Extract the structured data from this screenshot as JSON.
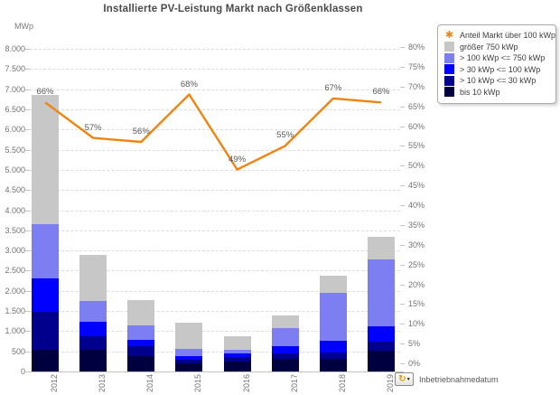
{
  "title": "Installierte PV-Leistung Markt nach Größenklassen",
  "left_axis_unit": "MWp",
  "chart_data": {
    "type": "bar",
    "subtype": "stacked-bars-with-percentage-line",
    "title": "Installierte PV-Leistung Markt nach Größenklassen",
    "categories": [
      "2012",
      "2013",
      "2014",
      "2015",
      "2016",
      "2017",
      "2018",
      "2019"
    ],
    "series": [
      {
        "name": "bis 10 kWp",
        "color": "#000041",
        "values": [
          530,
          530,
          370,
          200,
          250,
          310,
          320,
          520
        ]
      },
      {
        "name": "> 10 kWp <= 30 kWp",
        "color": "#00008C",
        "values": [
          950,
          350,
          250,
          90,
          100,
          140,
          150,
          230
        ]
      },
      {
        "name": "> 30 kWp <= 100 kWp",
        "color": "#0000FF",
        "values": [
          820,
          360,
          160,
          95,
          90,
          170,
          300,
          380
        ]
      },
      {
        "name": "> 100 kWp <= 750 kWp",
        "color": "#7E7EF3",
        "values": [
          1350,
          510,
          360,
          175,
          100,
          450,
          1170,
          1650
        ]
      },
      {
        "name": "größer 750 kWp",
        "color": "#C7C7C7",
        "values": [
          3200,
          1150,
          640,
          640,
          330,
          310,
          430,
          550
        ]
      }
    ],
    "bar_totals": [
      6850,
      2900,
      1780,
      1200,
      870,
      1380,
      2370,
      3330
    ],
    "line_series": {
      "name": "Anteil Markt über 100 kWp",
      "color": "#EF8410",
      "values_percent": [
        66,
        57,
        56,
        68,
        49,
        55,
        67,
        66
      ],
      "labels": [
        "66%",
        "57%",
        "56%",
        "68%",
        "49%",
        "55%",
        "67%",
        "66%"
      ]
    },
    "left_axis": {
      "unit": "MWp",
      "min": 0,
      "max": 8000,
      "step": 500,
      "tick_labels": [
        "0",
        "500",
        "1.000",
        "1.500",
        "2.000",
        "2.500",
        "3.000",
        "3.500",
        "4.000",
        "4.500",
        "5.000",
        "5.500",
        "6.000",
        "6.500",
        "7.000",
        "7.500",
        "8.000"
      ]
    },
    "right_axis": {
      "min": 0,
      "max": 80,
      "step": 5,
      "tick_labels": [
        "0%",
        "5%",
        "10%",
        "15%",
        "20%",
        "25%",
        "30%",
        "35%",
        "40%",
        "45%",
        "50%",
        "55%",
        "60%",
        "65%",
        "70%",
        "75%",
        "80%"
      ]
    },
    "grid": true,
    "legend_position": "top-right"
  },
  "legend": {
    "items": [
      {
        "marker": "star",
        "color": "#EF8410",
        "label": "Anteil Markt über 100 kWp"
      },
      {
        "marker": "square",
        "color": "#C7C7C7",
        "label": "größer 750 kWp"
      },
      {
        "marker": "square",
        "color": "#7E7EF3",
        "label": "> 100 kWp <= 750 kWp"
      },
      {
        "marker": "square",
        "color": "#0000FF",
        "label": "> 30 kWp <= 100 kWp"
      },
      {
        "marker": "square",
        "color": "#00008C",
        "label": "> 10 kWp <= 30 kWp"
      },
      {
        "marker": "square",
        "color": "#000041",
        "label": "bis 10 kWp"
      }
    ]
  },
  "footer": {
    "icon": "cycle-group-icon",
    "label": "Inbetriebnahmedatum"
  }
}
